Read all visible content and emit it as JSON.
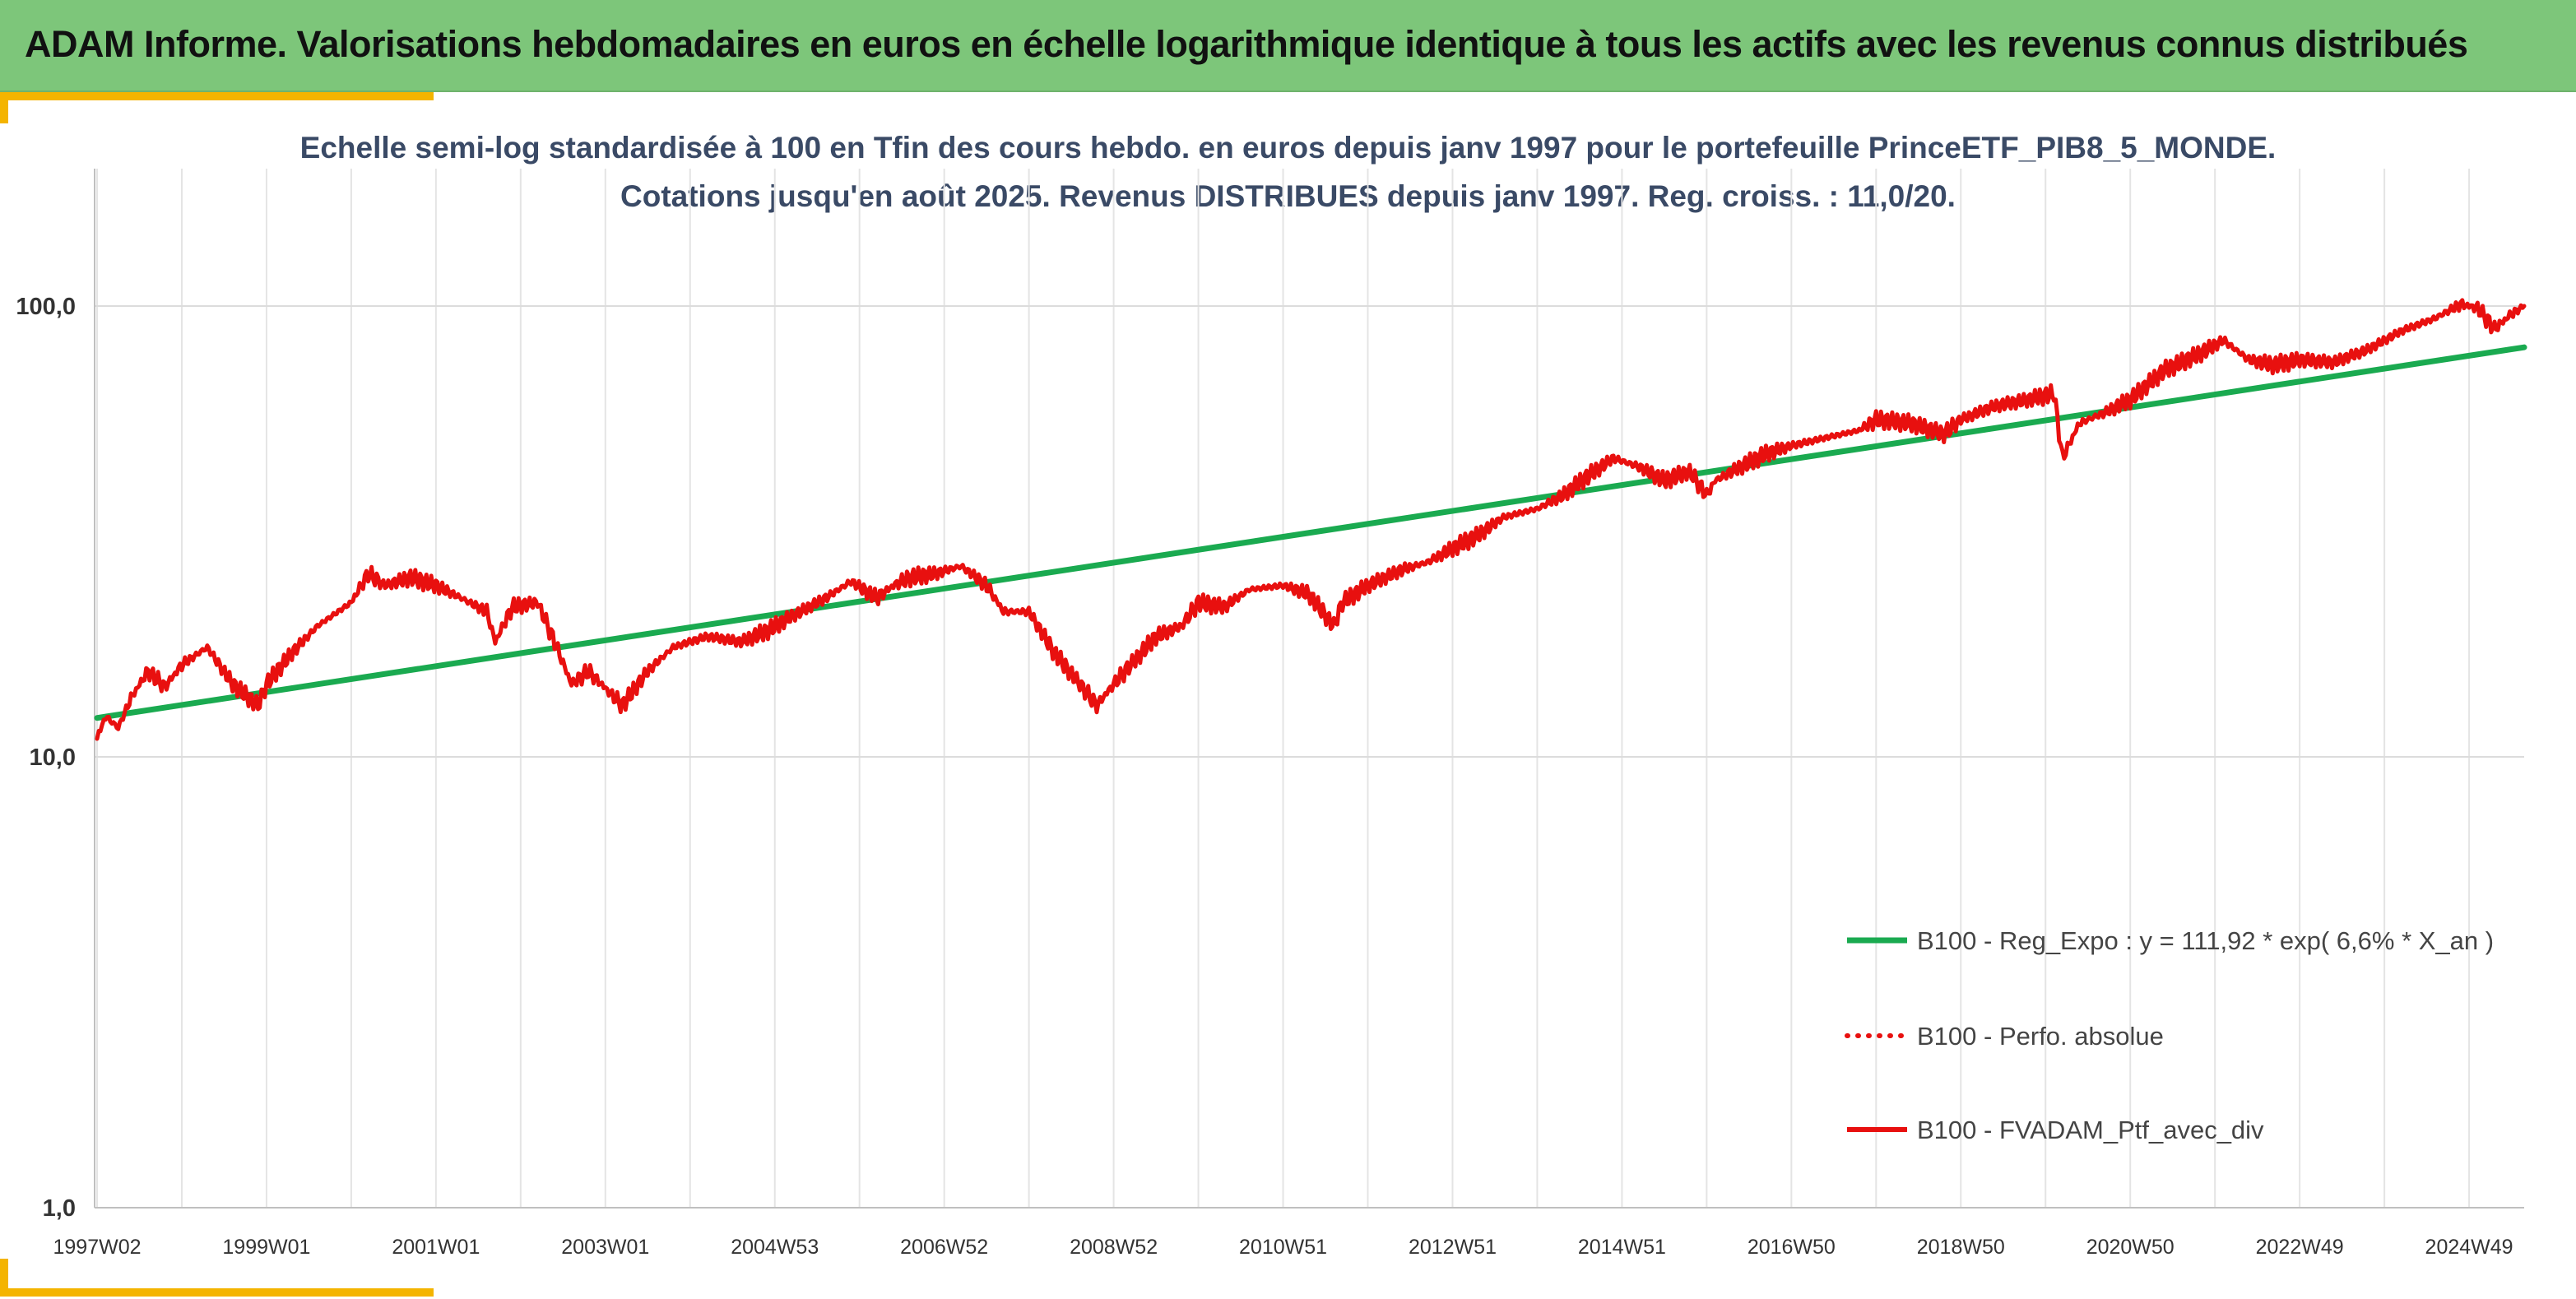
{
  "banner": {
    "title": "ADAM Informe. Valorisations hebdomadaires en euros en échelle logarithmique identique à tous les actifs avec les revenus connus distribués"
  },
  "colors": {
    "banner": "#7dc67a",
    "accent": "#f4b400",
    "regression": "#1aaa50",
    "portfolio": "#e8100f",
    "title_text": "#3a4a66"
  },
  "chart_data": {
    "type": "line",
    "title_lines": [
      "Echelle semi-log standardisée à 100 en Tfin des cours hebdo. en euros depuis janv 1997 pour le portefeuille PrinceETF_PIB8_5_MONDE.",
      "Cotations jusqu'en août 2025. Revenus DISTRIBUES depuis janv 1997. Reg. croiss. : 11,0/20."
    ],
    "y_scale": "log",
    "ylim": [
      1,
      200
    ],
    "y_ticks": [
      {
        "value": 1,
        "label": "1,0"
      },
      {
        "value": 10,
        "label": "10,0"
      },
      {
        "value": 100,
        "label": "100,0"
      }
    ],
    "xlim": [
      1997.0,
      2025.65
    ],
    "x_ticks": [
      {
        "x": 1997.0,
        "label": "1997W02"
      },
      {
        "x": 1999.0,
        "label": "1999W01"
      },
      {
        "x": 2001.0,
        "label": "2001W01"
      },
      {
        "x": 2003.0,
        "label": "2003W01"
      },
      {
        "x": 2005.0,
        "label": "2004W53"
      },
      {
        "x": 2007.0,
        "label": "2006W52"
      },
      {
        "x": 2009.0,
        "label": "2008W52"
      },
      {
        "x": 2011.0,
        "label": "2010W51"
      },
      {
        "x": 2013.0,
        "label": "2012W51"
      },
      {
        "x": 2015.0,
        "label": "2014W51"
      },
      {
        "x": 2017.0,
        "label": "2016W50"
      },
      {
        "x": 2019.0,
        "label": "2018W50"
      },
      {
        "x": 2021.0,
        "label": "2020W50"
      },
      {
        "x": 2023.0,
        "label": "2022W49"
      },
      {
        "x": 2025.0,
        "label": "2024W49"
      }
    ],
    "legend_position": "right",
    "series": [
      {
        "name": "B100 - Reg_Expo : y = 111,92 * exp( 6,6% *  X_an )",
        "style": "solid",
        "color": "#1aaa50",
        "x": [
          1997.0,
          2025.65
        ],
        "values": [
          12.2,
          81.0
        ]
      },
      {
        "name": "B100 - Perfo. absolue",
        "style": "dotted",
        "color": "#e8100f",
        "x": [],
        "values": []
      },
      {
        "name": "B100 - FVADAM_Ptf_avec_div",
        "style": "solid",
        "color": "#e8100f",
        "x": [
          1997.0,
          1997.1,
          1997.25,
          1997.4,
          1997.6,
          1997.8,
          1998.0,
          1998.3,
          1998.6,
          1998.9,
          1999.0,
          1999.3,
          1999.6,
          2000.0,
          2000.2,
          2000.4,
          2000.7,
          2001.0,
          2001.3,
          2001.6,
          2001.7,
          2001.9,
          2002.2,
          2002.4,
          2002.6,
          2002.8,
          2003.0,
          2003.2,
          2003.5,
          2003.8,
          2004.2,
          2004.6,
          2004.9,
          2005.2,
          2005.6,
          2005.9,
          2006.2,
          2006.4,
          2006.6,
          2006.9,
          2007.2,
          2007.5,
          2007.7,
          2008.0,
          2008.3,
          2008.6,
          2008.8,
          2009.0,
          2009.2,
          2009.5,
          2009.8,
          2010.0,
          2010.3,
          2010.6,
          2011.0,
          2011.3,
          2011.6,
          2011.7,
          2012.0,
          2012.4,
          2012.7,
          2013.0,
          2013.3,
          2013.6,
          2014.0,
          2014.3,
          2014.6,
          2014.9,
          2015.2,
          2015.5,
          2015.8,
          2016.0,
          2016.1,
          2016.4,
          2016.7,
          2017.0,
          2017.4,
          2017.8,
          2018.0,
          2018.4,
          2018.8,
          2019.0,
          2019.4,
          2019.8,
          2020.1,
          2020.2,
          2020.4,
          2020.7,
          2021.0,
          2021.4,
          2021.8,
          2022.1,
          2022.4,
          2022.7,
          2023.0,
          2023.4,
          2023.8,
          2024.2,
          2024.6,
          2024.9,
          2025.1,
          2025.3,
          2025.5,
          2025.65
        ],
        "values": [
          11.0,
          12.3,
          11.6,
          13.5,
          15.5,
          14.3,
          16.0,
          17.5,
          14.5,
          13.0,
          14.5,
          17.0,
          19.5,
          22.0,
          25.5,
          24.0,
          25.0,
          24.0,
          22.5,
          21.0,
          18.0,
          21.5,
          22.0,
          18.0,
          14.5,
          15.5,
          14.2,
          13.0,
          15.5,
          17.5,
          18.5,
          18.0,
          19.0,
          20.5,
          22.5,
          24.5,
          22.5,
          24.0,
          25.0,
          25.5,
          26.5,
          24.0,
          21.0,
          21.0,
          17.0,
          14.5,
          13.0,
          14.5,
          16.0,
          18.5,
          19.5,
          22.0,
          21.5,
          23.5,
          24.0,
          23.0,
          19.5,
          22.0,
          24.0,
          26.0,
          27.0,
          29.0,
          31.0,
          34.0,
          35.5,
          38.0,
          42.0,
          46.0,
          44.0,
          41.0,
          43.0,
          38.0,
          41.0,
          44.0,
          47.0,
          49.0,
          51.0,
          53.0,
          56.0,
          55.0,
          52.0,
          56.0,
          60.0,
          62.0,
          64.0,
          46.0,
          55.0,
          58.0,
          62.0,
          72.0,
          78.0,
          84.0,
          76.0,
          74.0,
          76.0,
          75.0,
          80.0,
          88.0,
          94.0,
          101.0,
          99.0,
          89.0,
          96.0,
          100.0
        ]
      }
    ]
  }
}
